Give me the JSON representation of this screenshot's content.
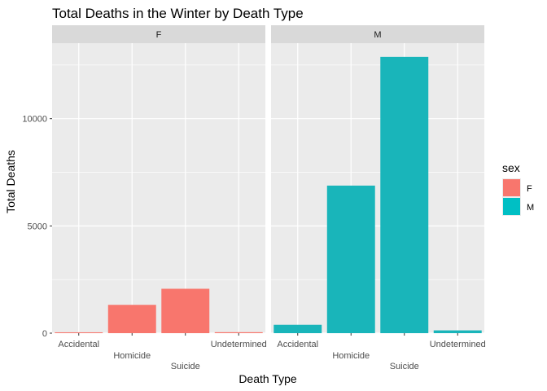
{
  "chart_data": {
    "type": "bar",
    "title": "Total Deaths in the Winter by Death Type",
    "xlabel": "Death Type",
    "ylabel": "Total Deaths",
    "categories": [
      "Accidental",
      "Homicide",
      "Suicide",
      "Undetermined"
    ],
    "facets": [
      {
        "strip": "F",
        "series": "F",
        "values": [
          40,
          1320,
          2070,
          45
        ]
      },
      {
        "strip": "M",
        "series": "M",
        "values": [
          390,
          6880,
          12880,
          130
        ]
      }
    ],
    "y_ticks": [
      0,
      5000,
      10000
    ],
    "y_tick_labels": [
      "0",
      "5000",
      "10000"
    ],
    "ylim": [
      0,
      13520
    ],
    "grid": true,
    "legend": {
      "title": "sex",
      "placement": "right",
      "entries": [
        {
          "label": "F",
          "color": "#F8766D"
        },
        {
          "label": "M",
          "color": "#00BFC4"
        }
      ]
    },
    "colors": {
      "F": "#F8766D",
      "M": "#19B5BA",
      "panel_bg": "#EBEBEB",
      "strip_bg": "#D9D9D9",
      "grid": "#FFFFFF"
    }
  }
}
